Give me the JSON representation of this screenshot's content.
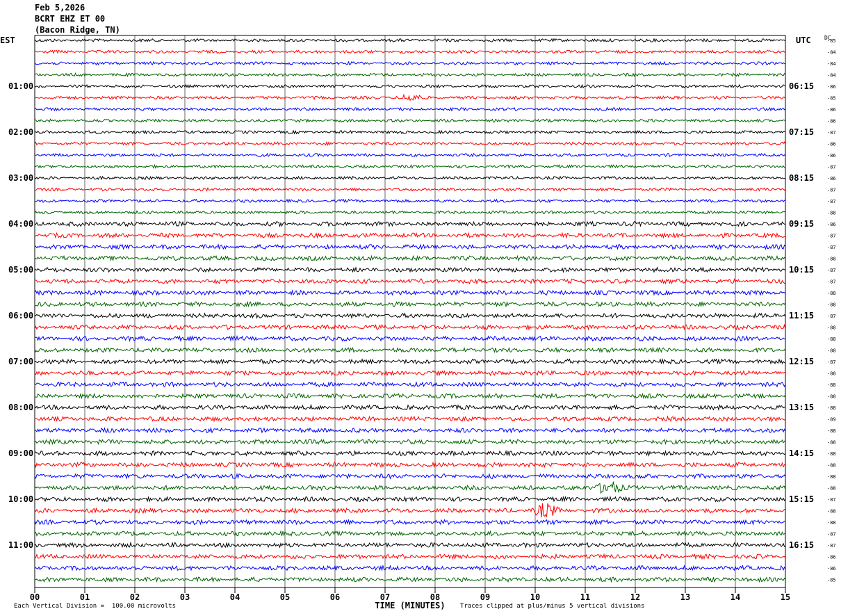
{
  "header": {
    "date": "Feb 5,2026",
    "station": "BCRT EHZ ET 00",
    "location": "(Bacon Ridge, TN)"
  },
  "footer": {
    "division": "Each Vertical Division =  100.00 microvolts",
    "clip_note": "Traces clipped at plus/minus 5 vertical divisions"
  },
  "chart_data": {
    "type": "line",
    "title": "",
    "xlabel": "TIME (MINUTES)",
    "ylabel": "",
    "xlim": [
      0,
      15
    ],
    "x_ticks": [
      "00",
      "01",
      "02",
      "03",
      "04",
      "05",
      "06",
      "07",
      "08",
      "09",
      "10",
      "11",
      "12",
      "13",
      "14",
      "15"
    ],
    "left_axis_label": "EST",
    "right_axis_label": "UTC",
    "dc_label": "DC",
    "rows": 48,
    "trace_colors": [
      "#000000",
      "#ff0000",
      "#0000ff",
      "#006400"
    ],
    "left_time_labels": [
      {
        "row": 4,
        "label": "01:00"
      },
      {
        "row": 8,
        "label": "02:00"
      },
      {
        "row": 12,
        "label": "03:00"
      },
      {
        "row": 16,
        "label": "04:00"
      },
      {
        "row": 20,
        "label": "05:00"
      },
      {
        "row": 24,
        "label": "06:00"
      },
      {
        "row": 28,
        "label": "07:00"
      },
      {
        "row": 32,
        "label": "08:00"
      },
      {
        "row": 36,
        "label": "09:00"
      },
      {
        "row": 40,
        "label": "10:00"
      },
      {
        "row": 44,
        "label": "11:00"
      }
    ],
    "right_time_labels": [
      {
        "row": 4,
        "label": "06:15"
      },
      {
        "row": 8,
        "label": "07:15"
      },
      {
        "row": 12,
        "label": "08:15"
      },
      {
        "row": 16,
        "label": "09:15"
      },
      {
        "row": 20,
        "label": "10:15"
      },
      {
        "row": 24,
        "label": "11:15"
      },
      {
        "row": 28,
        "label": "12:15"
      },
      {
        "row": 32,
        "label": "13:15"
      },
      {
        "row": 36,
        "label": "14:15"
      },
      {
        "row": 40,
        "label": "15:15"
      },
      {
        "row": 44,
        "label": "16:15"
      }
    ],
    "dc_offsets": [
      "-85",
      "-84",
      "-84",
      "-84",
      "-86",
      "-85",
      "-86",
      "-86",
      "-87",
      "-86",
      "-86",
      "-87",
      "-86",
      "-87",
      "-87",
      "-88",
      "-86",
      "-87",
      "-87",
      "-88",
      "-87",
      "-87",
      "-88",
      "-88",
      "-87",
      "-88",
      "-88",
      "-88",
      "-87",
      "-88",
      "-88",
      "-88",
      "-88",
      "-89",
      "-88",
      "-88",
      "-88",
      "-88",
      "-88",
      "-88",
      "-87",
      "-88",
      "-88",
      "-87",
      "-87",
      "-86",
      "-86",
      "-85"
    ],
    "events": [
      {
        "row": 5,
        "minute": 7.5,
        "amplitude": 2.0
      },
      {
        "row": 39,
        "minute": 11.45,
        "amplitude": 4.5
      },
      {
        "row": 41,
        "minute": 10.2,
        "amplitude": 4.0
      }
    ]
  }
}
